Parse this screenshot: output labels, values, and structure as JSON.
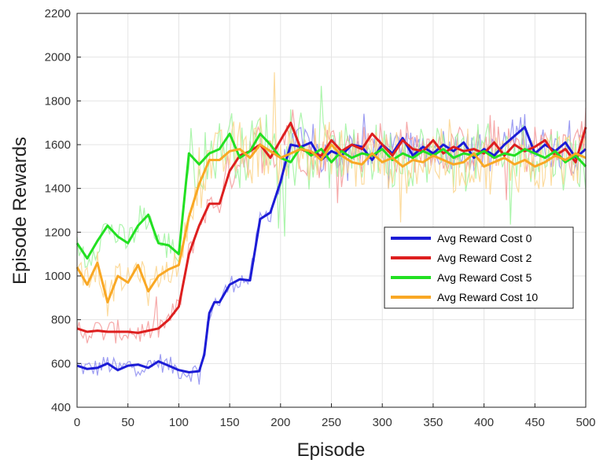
{
  "chart_data": {
    "type": "line",
    "title": "",
    "xlabel": "Episode",
    "ylabel": "Episode Rewards",
    "xlim": [
      0,
      500
    ],
    "ylim": [
      400,
      2200
    ],
    "xticks": [
      0,
      50,
      100,
      150,
      200,
      250,
      300,
      350,
      400,
      450,
      500
    ],
    "yticks": [
      400,
      600,
      800,
      1000,
      1200,
      1400,
      1600,
      1800,
      2000,
      2200
    ],
    "xtick_labels": [
      "0",
      "50",
      "100",
      "150",
      "200",
      "250",
      "300",
      "350",
      "400",
      "450",
      "500"
    ],
    "ytick_labels": [
      "400",
      "600",
      "800",
      "1000",
      "1200",
      "1400",
      "1600",
      "1800",
      "2000",
      "2200"
    ],
    "grid": true,
    "legend_position": "middle-right",
    "series": [
      {
        "name": "Avg Reward Cost 0",
        "color": "#1c1cd6",
        "raw_color": "#8c8cf0",
        "noise": 45,
        "x": [
          0,
          10,
          20,
          30,
          40,
          50,
          60,
          70,
          80,
          90,
          100,
          110,
          120,
          125,
          130,
          135,
          140,
          150,
          160,
          170,
          180,
          190,
          200,
          205,
          210,
          220,
          230,
          240,
          250,
          260,
          270,
          280,
          290,
          300,
          310,
          320,
          330,
          340,
          350,
          360,
          370,
          380,
          390,
          400,
          410,
          420,
          430,
          440,
          450,
          460,
          470,
          480,
          490,
          500
        ],
        "y": [
          590,
          575,
          580,
          600,
          570,
          590,
          595,
          580,
          610,
          590,
          570,
          560,
          565,
          640,
          830,
          880,
          880,
          960,
          985,
          980,
          1260,
          1290,
          1430,
          1520,
          1600,
          1590,
          1610,
          1530,
          1570,
          1550,
          1600,
          1590,
          1530,
          1600,
          1560,
          1630,
          1550,
          1590,
          1560,
          1600,
          1570,
          1610,
          1540,
          1580,
          1550,
          1600,
          1640,
          1680,
          1560,
          1600,
          1570,
          1610,
          1540,
          1580
        ]
      },
      {
        "name": "Avg Reward Cost 2",
        "color": "#dd1f1f",
        "raw_color": "#f59a9a",
        "noise": 55,
        "x": [
          0,
          10,
          20,
          30,
          40,
          50,
          60,
          70,
          80,
          90,
          100,
          110,
          120,
          130,
          140,
          150,
          160,
          170,
          180,
          190,
          200,
          210,
          220,
          230,
          240,
          250,
          260,
          270,
          280,
          290,
          300,
          310,
          320,
          330,
          340,
          350,
          360,
          370,
          380,
          390,
          400,
          410,
          420,
          430,
          440,
          450,
          460,
          470,
          480,
          490,
          500
        ],
        "y": [
          760,
          745,
          750,
          745,
          745,
          745,
          740,
          750,
          760,
          800,
          860,
          1100,
          1230,
          1330,
          1330,
          1480,
          1550,
          1570,
          1600,
          1540,
          1620,
          1700,
          1580,
          1560,
          1550,
          1620,
          1570,
          1600,
          1580,
          1650,
          1600,
          1550,
          1620,
          1580,
          1570,
          1620,
          1560,
          1590,
          1570,
          1580,
          1560,
          1610,
          1550,
          1600,
          1570,
          1590,
          1620,
          1550,
          1580,
          1520,
          1680
        ]
      },
      {
        "name": "Avg Reward Cost 5",
        "color": "#22e022",
        "raw_color": "#9ff39f",
        "noise": 70,
        "x": [
          0,
          10,
          20,
          30,
          40,
          50,
          60,
          70,
          80,
          90,
          100,
          110,
          120,
          130,
          140,
          150,
          160,
          170,
          180,
          190,
          200,
          210,
          220,
          230,
          240,
          250,
          260,
          270,
          280,
          290,
          300,
          310,
          320,
          330,
          340,
          350,
          360,
          370,
          380,
          390,
          400,
          410,
          420,
          430,
          440,
          450,
          460,
          470,
          480,
          490,
          500
        ],
        "y": [
          1150,
          1080,
          1160,
          1230,
          1180,
          1150,
          1230,
          1280,
          1150,
          1140,
          1100,
          1560,
          1510,
          1560,
          1580,
          1650,
          1540,
          1570,
          1650,
          1600,
          1540,
          1520,
          1590,
          1550,
          1580,
          1520,
          1570,
          1540,
          1560,
          1550,
          1580,
          1530,
          1560,
          1540,
          1570,
          1550,
          1580,
          1540,
          1560,
          1550,
          1570,
          1540,
          1560,
          1550,
          1580,
          1560,
          1540,
          1570,
          1520,
          1550,
          1500
        ]
      },
      {
        "name": "Avg Reward Cost 10",
        "color": "#f9a825",
        "raw_color": "#fcd58d",
        "noise": 70,
        "x": [
          0,
          10,
          20,
          30,
          40,
          50,
          60,
          70,
          80,
          90,
          100,
          110,
          120,
          130,
          140,
          150,
          160,
          170,
          180,
          190,
          200,
          210,
          220,
          230,
          240,
          250,
          260,
          270,
          280,
          290,
          300,
          310,
          320,
          330,
          340,
          350,
          360,
          370,
          380,
          390,
          400,
          410,
          420,
          430,
          440,
          450,
          460,
          470,
          480,
          490,
          500
        ],
        "y": [
          1040,
          960,
          1060,
          880,
          1000,
          970,
          1050,
          930,
          1000,
          1030,
          1050,
          1270,
          1420,
          1530,
          1530,
          1570,
          1580,
          1540,
          1600,
          1570,
          1540,
          1560,
          1580,
          1570,
          1530,
          1600,
          1550,
          1520,
          1510,
          1560,
          1520,
          1540,
          1500,
          1530,
          1520,
          1550,
          1530,
          1510,
          1520,
          1560,
          1500,
          1520,
          1540,
          1510,
          1530,
          1500,
          1520,
          1550,
          1530,
          1560,
          1540
        ]
      }
    ]
  }
}
